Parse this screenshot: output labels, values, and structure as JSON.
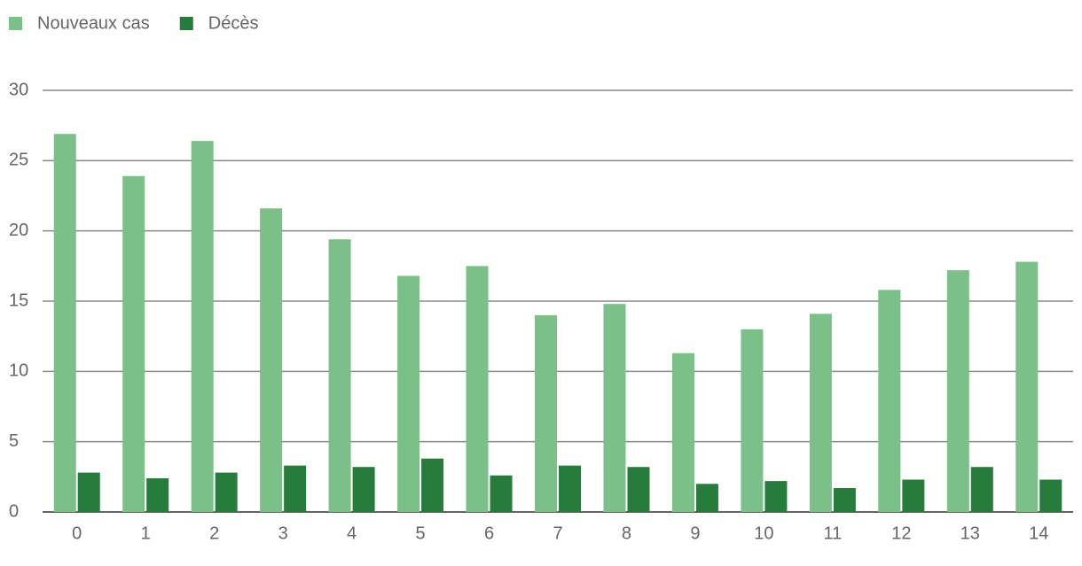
{
  "chart_data": {
    "type": "bar",
    "categories": [
      0,
      1,
      2,
      3,
      4,
      5,
      6,
      7,
      8,
      9,
      10,
      11,
      12,
      13,
      14
    ],
    "series": [
      {
        "name": "Nouveaux cas",
        "color": "#7bbf89",
        "values": [
          26.9,
          23.9,
          26.4,
          21.6,
          19.4,
          16.8,
          17.5,
          14.0,
          14.8,
          11.3,
          13.0,
          14.1,
          15.8,
          17.2,
          17.8
        ]
      },
      {
        "name": "Décès",
        "color": "#267d3b",
        "values": [
          2.8,
          2.4,
          2.8,
          3.3,
          3.2,
          3.8,
          2.6,
          3.3,
          3.2,
          2.0,
          2.2,
          1.7,
          2.3,
          3.2,
          2.3
        ]
      }
    ],
    "ylim": [
      0,
      30
    ],
    "yticks": [
      0,
      5,
      10,
      15,
      20,
      25,
      30
    ],
    "grid": true,
    "legend": "top-left"
  }
}
